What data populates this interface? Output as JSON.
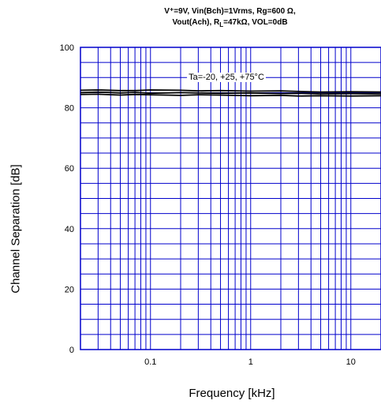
{
  "chart_data": {
    "type": "line",
    "title_line1": "V⁺=9V, Vin(Bch)=1Vrms, Rg=600 Ω,",
    "title_line2": "Vout(Ach), R",
    "title_line2_sub": "L",
    "title_line2_rest": "=47kΩ, VOL=0dB",
    "xlabel": "Frequency [kHz]",
    "ylabel": "Channel Separation [dB]",
    "x_scale": "log",
    "xlim": [
      0.02,
      20
    ],
    "ylim": [
      0,
      100
    ],
    "x_ticks": [
      {
        "value": 0.1,
        "label": "0.1"
      },
      {
        "value": 1,
        "label": "1"
      },
      {
        "value": 10,
        "label": "10"
      }
    ],
    "y_ticks": [
      {
        "value": 0,
        "label": "0"
      },
      {
        "value": 20,
        "label": "20"
      },
      {
        "value": 40,
        "label": "40"
      },
      {
        "value": 60,
        "label": "60"
      },
      {
        "value": 80,
        "label": "80"
      },
      {
        "value": 100,
        "label": "100"
      }
    ],
    "grid": true,
    "grid_color": "#0000cc",
    "line_color": "#000000",
    "annotation": "Ta=-20, +25, +75°C",
    "series": [
      {
        "x": [
          0.02,
          0.03,
          0.05,
          0.07,
          0.1,
          0.2,
          0.3,
          0.5,
          1,
          2,
          3,
          5,
          10,
          20
        ],
        "values": [
          85.8,
          85.9,
          85.7,
          85.7,
          85.9,
          85.8,
          85.6,
          85.7,
          85.5,
          85.6,
          85.4,
          85.2,
          85.3,
          85.2
        ]
      },
      {
        "x": [
          0.02,
          0.03,
          0.05,
          0.07,
          0.1,
          0.2,
          0.3,
          0.5,
          1,
          2,
          3,
          5,
          10,
          20
        ],
        "values": [
          85.0,
          85.2,
          84.9,
          85.1,
          84.8,
          85.0,
          84.9,
          84.8,
          84.9,
          84.7,
          84.8,
          84.6,
          84.7,
          84.6
        ]
      },
      {
        "x": [
          0.02,
          0.03,
          0.05,
          0.07,
          0.1,
          0.2,
          0.3,
          0.5,
          1,
          2,
          3,
          5,
          10,
          20
        ],
        "values": [
          84.4,
          84.5,
          84.2,
          84.4,
          84.3,
          84.1,
          84.3,
          84.2,
          84.0,
          84.1,
          83.9,
          84.0,
          83.9,
          84.0
        ]
      }
    ]
  }
}
